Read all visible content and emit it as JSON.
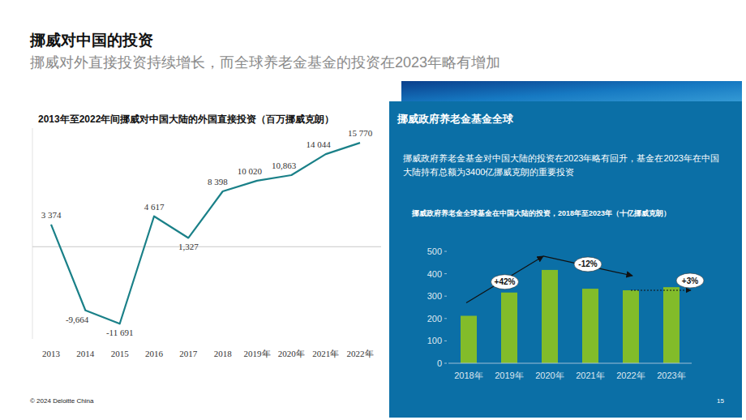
{
  "page": {
    "title": "挪威对中国的投资",
    "subtitle": "挪威对外直接投资持续增长，而全球养老金基金的投资在2023年略有增加",
    "footer": "© 2024 Deloitte China",
    "page_number": "15",
    "panel_title": "挪威政府养老金基金全球",
    "panel_text": "挪威政府养老金基金对中国大陆的投资在2023年略有回升，基金在2023年在中国大陆持有总额为3400亿挪威克朗的重要投资"
  },
  "chart_data": [
    {
      "type": "line",
      "title": "2013年至2022年间挪威对中国大陆的外国直接投资（百万挪威克朗）",
      "categories": [
        "2013",
        "2014",
        "2015",
        "2016",
        "2017",
        "2018",
        "2019年",
        "2020年",
        "2021年",
        "2022年"
      ],
      "values": [
        3374,
        -9664,
        -11691,
        4617,
        1327,
        8398,
        10020,
        10863,
        14044,
        15770
      ],
      "value_labels": [
        "3 374",
        "-9,664",
        "-11 691",
        "4 617",
        "1,327",
        "8 398",
        "10 020",
        "10,863",
        "14 044",
        "15 770"
      ],
      "color": "#1a8088",
      "data_labels": true,
      "ylim": [
        -14000,
        18000
      ],
      "yticks": [
        0
      ],
      "tick_labels": "x",
      "grid": false
    },
    {
      "type": "bar",
      "title": "挪威政府养老金全球基金在中国大陆的投资，2018年至2023年（十亿挪威克朗）",
      "categories": [
        "2018年",
        "2019年",
        "2020年",
        "2021年",
        "2022年",
        "2023年"
      ],
      "values": [
        212,
        316,
        417,
        333,
        326,
        340
      ],
      "color": "#82bc2a",
      "ylim": [
        0,
        500
      ],
      "yticks": [
        0,
        100,
        200,
        300,
        400,
        500
      ],
      "grid": false,
      "annotations": [
        "+42%",
        "-12%",
        "+3%"
      ]
    }
  ]
}
